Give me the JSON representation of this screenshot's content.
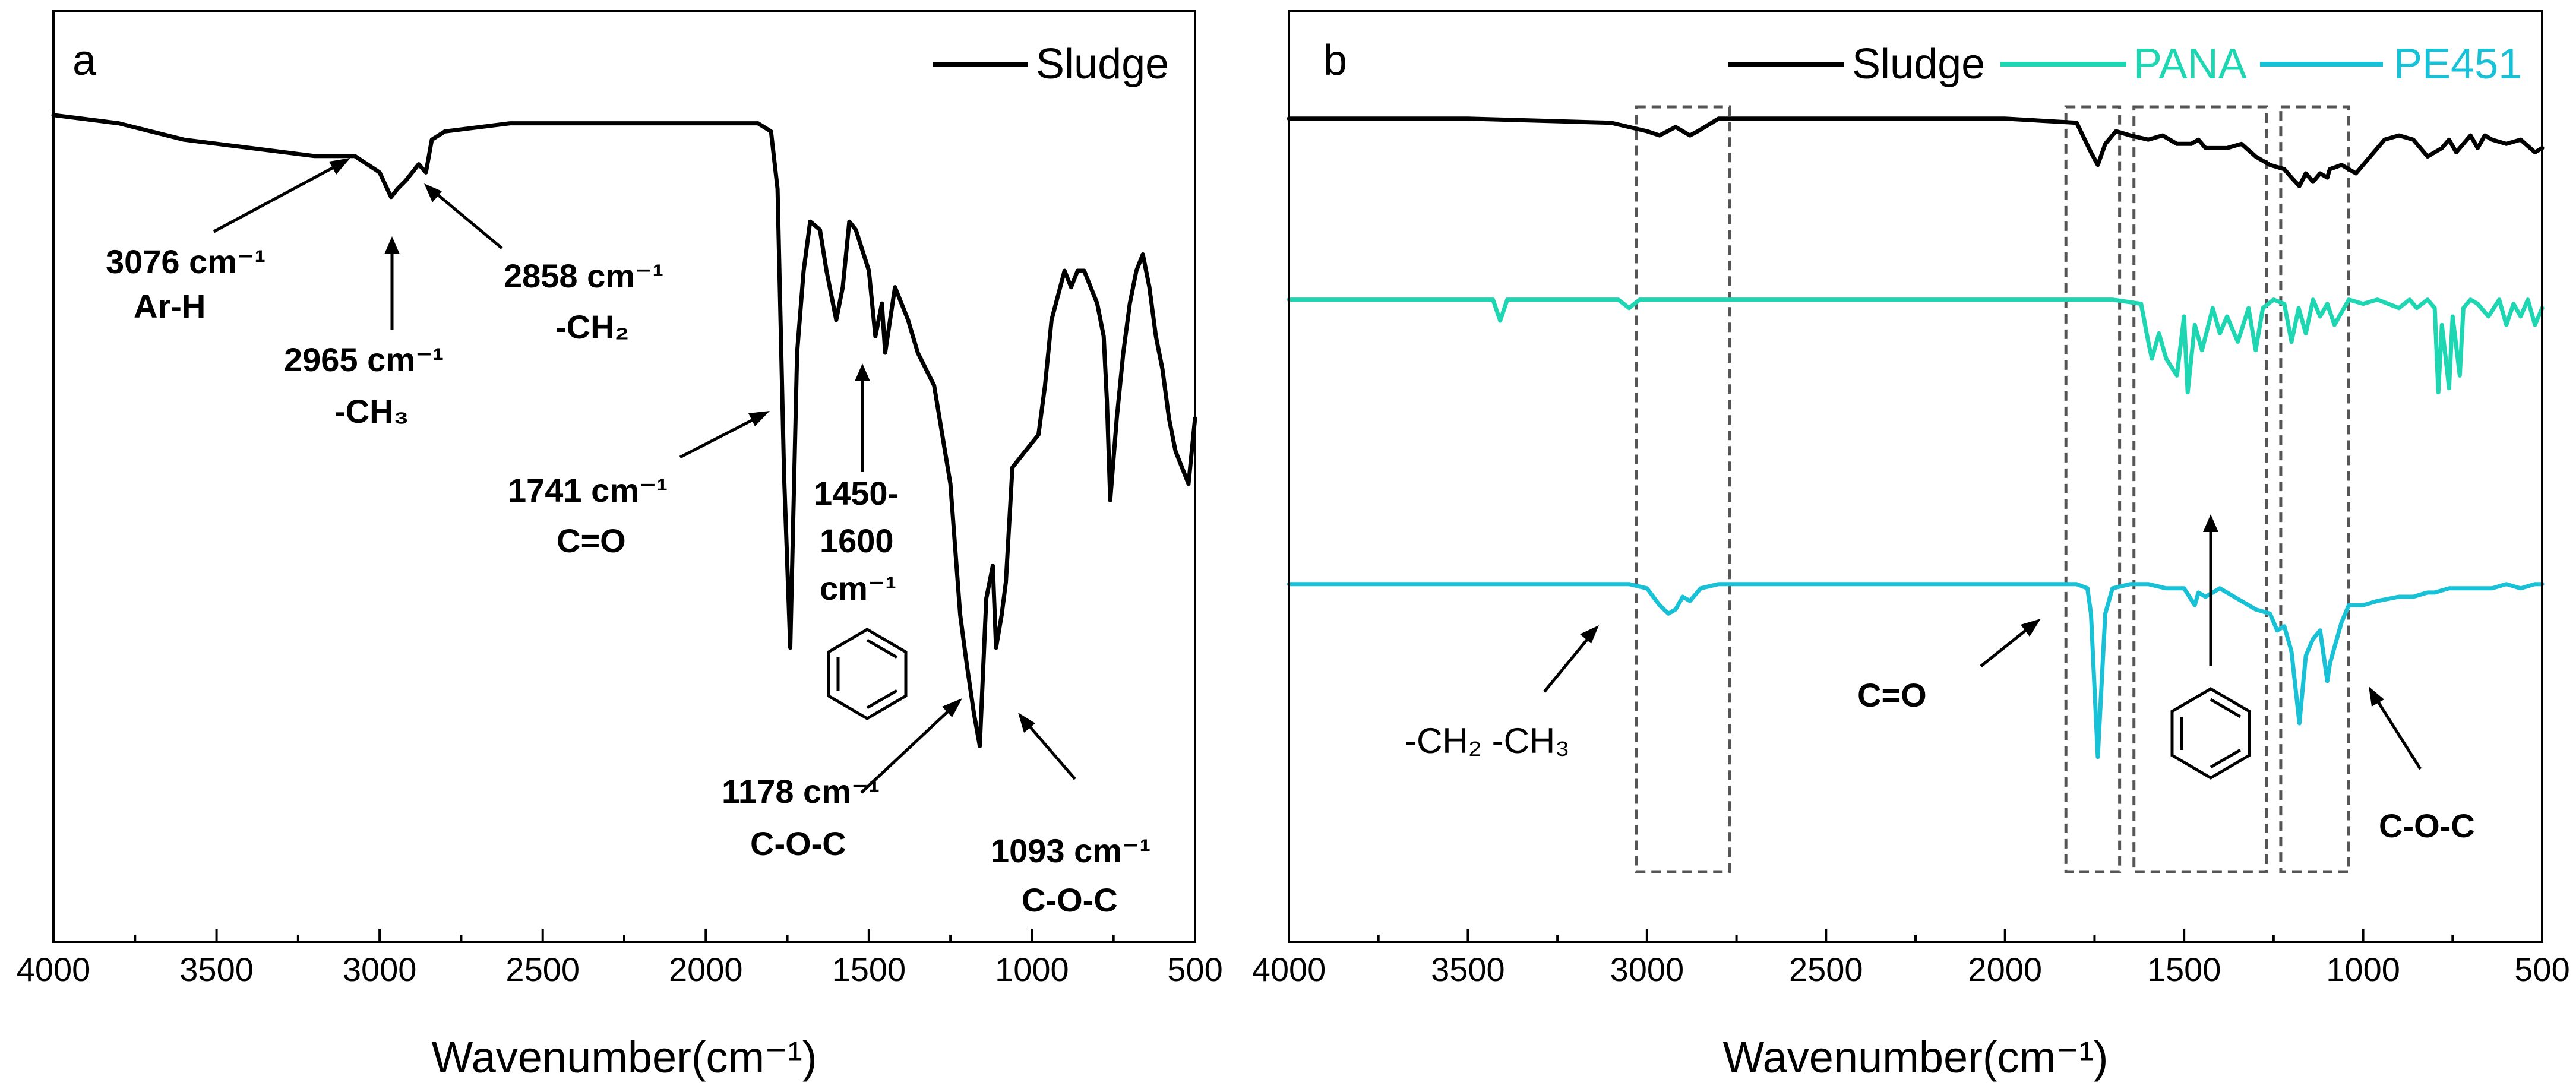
{
  "chart_data": [
    {
      "panel": "a",
      "type": "line",
      "title": "",
      "xlabel": "Wavenumber(cm⁻¹)",
      "ylabel": "",
      "xlim": [
        4000,
        500
      ],
      "ylim": [
        0,
        100
      ],
      "x_reversed": true,
      "xticks": [
        4000,
        3500,
        3000,
        2500,
        2000,
        1500,
        1000,
        500
      ],
      "series": [
        {
          "name": "Sludge",
          "color": "#000000",
          "x": [
            4000,
            3800,
            3600,
            3400,
            3200,
            3100,
            3076,
            3000,
            2965,
            2945,
            2920,
            2880,
            2858,
            2840,
            2800,
            2600,
            2400,
            2200,
            2000,
            1840,
            1800,
            1780,
            1760,
            1741,
            1720,
            1700,
            1680,
            1650,
            1630,
            1600,
            1580,
            1560,
            1540,
            1500,
            1480,
            1460,
            1450,
            1420,
            1380,
            1350,
            1300,
            1250,
            1220,
            1200,
            1178,
            1160,
            1140,
            1120,
            1110,
            1093,
            1080,
            1060,
            1020,
            980,
            960,
            940,
            900,
            880,
            860,
            840,
            800,
            780,
            770,
            760,
            740,
            720,
            700,
            680,
            660,
            640,
            620,
            600,
            580,
            560,
            540,
            520,
            500
          ],
          "y": [
            99,
            98,
            96,
            95,
            94,
            94,
            94,
            92,
            89,
            90,
            91,
            93,
            92,
            96,
            97,
            98,
            98,
            98,
            98,
            98,
            97,
            90,
            55,
            34,
            70,
            80,
            86,
            85,
            80,
            74,
            78,
            86,
            85,
            80,
            72,
            76,
            70,
            78,
            74,
            70,
            66,
            54,
            38,
            32,
            26,
            22,
            40,
            44,
            34,
            38,
            42,
            56,
            58,
            60,
            66,
            74,
            80,
            78,
            80,
            80,
            76,
            72,
            64,
            52,
            62,
            70,
            76,
            80,
            82,
            78,
            72,
            68,
            62,
            58,
            56,
            54,
            62
          ]
        }
      ],
      "legend": {
        "position": "top-right",
        "entries": [
          "Sludge"
        ]
      },
      "panel_label": "a",
      "annotations": [
        {
          "line1": "3076 cm⁻¹",
          "line2": "Ar-H"
        },
        {
          "line1": "2965 cm⁻¹",
          "line2": "-CH₃"
        },
        {
          "line1": "2858 cm⁻¹",
          "line2": "-CH₂"
        },
        {
          "line1": "1741 cm⁻¹",
          "line2": "C=O"
        },
        {
          "line1": "1450-",
          "line2": "1600",
          "line3": "cm⁻¹"
        },
        {
          "line1": "1178 cm⁻¹",
          "line2": "C-O-C"
        },
        {
          "line1": "1093 cm⁻¹",
          "line2": "C-O-C"
        }
      ]
    },
    {
      "panel": "b",
      "type": "line",
      "title": "",
      "xlabel": "Wavenumber(cm⁻¹)",
      "ylabel": "",
      "xlim": [
        4000,
        500
      ],
      "ylim": [
        0,
        100
      ],
      "x_reversed": true,
      "xticks": [
        4000,
        3500,
        3000,
        2500,
        2000,
        1500,
        1000,
        500
      ],
      "series": [
        {
          "name": "Sludge",
          "color": "#000000",
          "x": [
            4000,
            3500,
            3100,
            3050,
            3000,
            2965,
            2920,
            2880,
            2858,
            2800,
            2400,
            2000,
            1800,
            1760,
            1741,
            1720,
            1690,
            1650,
            1600,
            1560,
            1520,
            1480,
            1460,
            1440,
            1400,
            1380,
            1340,
            1300,
            1260,
            1220,
            1200,
            1178,
            1160,
            1140,
            1120,
            1100,
            1093,
            1060,
            1020,
            980,
            940,
            900,
            860,
            820,
            780,
            760,
            740,
            700,
            680,
            660,
            640,
            600,
            560,
            520,
            500
          ],
          "y": [
            93,
            93,
            92,
            91,
            90,
            89,
            91,
            89,
            90,
            93,
            93,
            93,
            92,
            85,
            82,
            87,
            90,
            89,
            88,
            89,
            87,
            87,
            88,
            86,
            86,
            86,
            87,
            84,
            82,
            81,
            79,
            77,
            80,
            78,
            80,
            79,
            81,
            82,
            80,
            84,
            88,
            89,
            88,
            84,
            86,
            88,
            85,
            89,
            86,
            89,
            88,
            87,
            88,
            85,
            86
          ]
        },
        {
          "name": "PANA",
          "color": "#1fd6b2",
          "x": [
            4000,
            3500,
            3430,
            3410,
            3390,
            3300,
            3080,
            3050,
            3020,
            2800,
            2400,
            2000,
            1700,
            1620,
            1600,
            1590,
            1570,
            1550,
            1520,
            1500,
            1490,
            1470,
            1450,
            1420,
            1400,
            1380,
            1350,
            1320,
            1300,
            1280,
            1250,
            1220,
            1200,
            1180,
            1160,
            1140,
            1120,
            1100,
            1080,
            1040,
            1000,
            960,
            900,
            870,
            850,
            820,
            800,
            790,
            780,
            760,
            750,
            730,
            720,
            700,
            680,
            650,
            620,
            600,
            580,
            560,
            540,
            520,
            500
          ],
          "y": [
            74,
            74,
            74,
            69,
            74,
            74,
            74,
            72,
            74,
            74,
            74,
            74,
            74,
            73,
            64,
            60,
            66,
            60,
            56,
            70,
            52,
            68,
            62,
            72,
            66,
            70,
            64,
            72,
            62,
            72,
            74,
            73,
            64,
            72,
            66,
            74,
            70,
            73,
            68,
            74,
            73,
            74,
            72,
            74,
            72,
            74,
            72,
            52,
            68,
            53,
            70,
            56,
            72,
            74,
            73,
            70,
            74,
            68,
            73,
            70,
            74,
            68,
            72
          ]
        },
        {
          "name": "PE451",
          "color": "#19c1d6",
          "x": [
            4000,
            3500,
            3100,
            3050,
            3000,
            2965,
            2940,
            2920,
            2900,
            2880,
            2850,
            2800,
            2400,
            2000,
            1800,
            1770,
            1760,
            1741,
            1720,
            1700,
            1650,
            1600,
            1550,
            1500,
            1470,
            1460,
            1440,
            1400,
            1380,
            1340,
            1300,
            1260,
            1240,
            1220,
            1200,
            1178,
            1160,
            1150,
            1140,
            1120,
            1100,
            1093,
            1080,
            1060,
            1040,
            1000,
            960,
            900,
            860,
            820,
            800,
            760,
            720,
            680,
            640,
            600,
            560,
            520,
            500
          ],
          "y": [
            53,
            53,
            53,
            53,
            52,
            48,
            46,
            47,
            50,
            49,
            52,
            53,
            53,
            53,
            53,
            52,
            46,
            12,
            46,
            52,
            53,
            53,
            52,
            52,
            48,
            51,
            50,
            52,
            51,
            49,
            47,
            46,
            42,
            43,
            37,
            20,
            36,
            38,
            40,
            42,
            30,
            34,
            38,
            44,
            48,
            48,
            49,
            50,
            50,
            51,
            51,
            52,
            52,
            52,
            52,
            53,
            52,
            53,
            53
          ]
        }
      ],
      "legend": {
        "position": "top-right",
        "entries": [
          "Sludge",
          "PANA",
          "PE451"
        ]
      },
      "panel_label": "b",
      "highlight_regions": [
        {
          "from": 3030,
          "to": 2770
        },
        {
          "from": 1830,
          "to": 1680
        },
        {
          "from": 1640,
          "to": 1270
        },
        {
          "from": 1230,
          "to": 1040
        }
      ],
      "annotations": [
        {
          "line1": "-CH₂ -CH₃"
        },
        {
          "line1": "C=O"
        },
        {
          "line1": "C-O-C"
        }
      ]
    }
  ]
}
